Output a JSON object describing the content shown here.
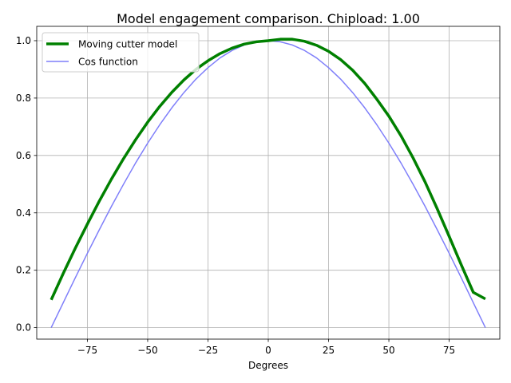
{
  "chart_data": {
    "type": "line",
    "title": "Model engagement comparison. Chipload: 1.00",
    "xlabel": "Degrees",
    "ylabel": "",
    "xlim": [
      -96,
      96
    ],
    "ylim": [
      -0.04,
      1.05
    ],
    "xticks": [
      -75,
      -50,
      -25,
      0,
      25,
      50,
      75
    ],
    "xtick_labels": [
      "−75",
      "−50",
      "−25",
      "0",
      "25",
      "50",
      "75"
    ],
    "yticks": [
      0.0,
      0.2,
      0.4,
      0.6,
      0.8,
      1.0
    ],
    "ytick_labels": [
      "0.0",
      "0.2",
      "0.4",
      "0.6",
      "0.8",
      "1.0"
    ],
    "grid": true,
    "legend_position": "top-left",
    "series": [
      {
        "name": "Moving cutter model",
        "color": "#008000",
        "line_width": "thick",
        "x": [
          -90,
          -85,
          -80,
          -75,
          -70,
          -65,
          -60,
          -55,
          -50,
          -45,
          -40,
          -35,
          -30,
          -25,
          -20,
          -15,
          -10,
          -5,
          0,
          5,
          10,
          15,
          20,
          25,
          30,
          35,
          40,
          45,
          50,
          55,
          60,
          65,
          70,
          75,
          80,
          85,
          90
        ],
        "y": [
          0.097,
          0.189,
          0.277,
          0.361,
          0.442,
          0.518,
          0.589,
          0.655,
          0.716,
          0.771,
          0.82,
          0.863,
          0.9,
          0.93,
          0.955,
          0.974,
          0.988,
          0.996,
          1.0,
          1.005,
          1.005,
          0.998,
          0.984,
          0.963,
          0.934,
          0.897,
          0.851,
          0.796,
          0.737,
          0.669,
          0.592,
          0.508,
          0.415,
          0.318,
          0.219,
          0.123,
          0.1
        ]
      },
      {
        "name": "Cos function",
        "color": "#7f7ffa",
        "line_width": "thin",
        "x": [
          -90,
          -85,
          -80,
          -75,
          -70,
          -65,
          -60,
          -55,
          -50,
          -45,
          -40,
          -35,
          -30,
          -25,
          -20,
          -15,
          -10,
          -5,
          0,
          5,
          10,
          15,
          20,
          25,
          30,
          35,
          40,
          45,
          50,
          55,
          60,
          65,
          70,
          75,
          80,
          85,
          90
        ],
        "y": [
          0.0,
          0.087,
          0.174,
          0.259,
          0.342,
          0.423,
          0.5,
          0.574,
          0.643,
          0.707,
          0.766,
          0.819,
          0.866,
          0.906,
          0.94,
          0.966,
          0.985,
          0.996,
          1.0,
          0.996,
          0.985,
          0.966,
          0.94,
          0.906,
          0.866,
          0.819,
          0.766,
          0.707,
          0.643,
          0.574,
          0.5,
          0.423,
          0.342,
          0.259,
          0.174,
          0.087,
          0.0
        ]
      }
    ]
  }
}
